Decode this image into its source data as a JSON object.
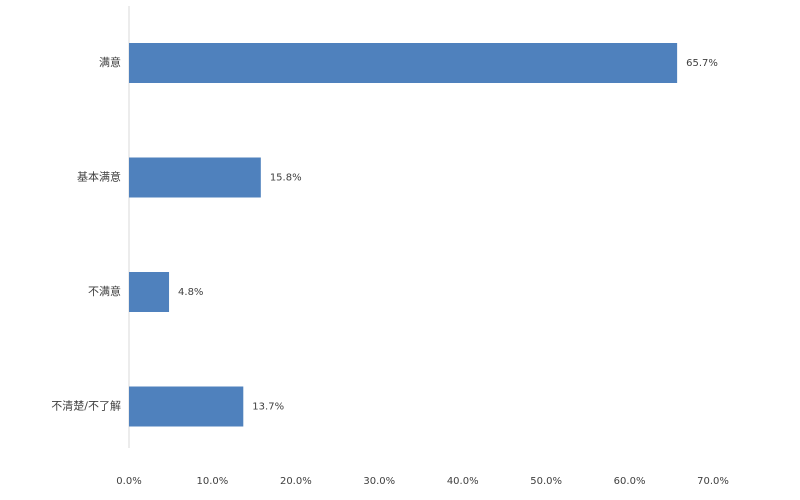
{
  "chart_data": {
    "type": "bar",
    "orientation": "horizontal",
    "categories": [
      "满意",
      "基本满意",
      "不满意",
      "不清楚/不了解"
    ],
    "values": [
      65.7,
      15.8,
      4.8,
      13.7
    ],
    "value_labels": [
      "65.7%",
      "15.8%",
      "4.8%",
      "13.7%"
    ],
    "x_ticks": [
      "0.0%",
      "10.0%",
      "20.0%",
      "30.0%",
      "40.0%",
      "50.0%",
      "60.0%",
      "70.0%"
    ],
    "xlim": [
      0,
      70
    ],
    "grid": false,
    "legend": "none",
    "bar_color": "#4f81bd",
    "axis_color": "#d9d9d9"
  }
}
